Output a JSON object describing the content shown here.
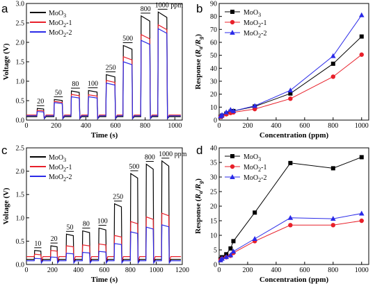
{
  "panels": [
    {
      "label": "a",
      "chart_data": {
        "type": "line",
        "xlabel": "Time (s)",
        "ylabel": "Voltage (V)",
        "xlim": [
          0,
          1050
        ],
        "ylim": [
          0,
          3.0
        ],
        "xticks": [
          0,
          200,
          400,
          600,
          800,
          1000
        ],
        "yticks": [
          0.0,
          0.5,
          1.0,
          1.5,
          2.0,
          2.5,
          3.0
        ],
        "baseline": [
          0.09,
          0.13,
          0.11
        ],
        "pulses": [
          {
            "label": "20",
            "start": 70,
            "end": 120,
            "levels": [
              0.3,
              0.25,
              0.22
            ]
          },
          {
            "label": "50",
            "start": 185,
            "end": 245,
            "levels": [
              0.53,
              0.48,
              0.45
            ]
          },
          {
            "label": "80",
            "start": 300,
            "end": 360,
            "levels": [
              0.75,
              0.66,
              0.6
            ]
          },
          {
            "label": "100",
            "start": 415,
            "end": 480,
            "levels": [
              0.76,
              0.65,
              0.6
            ]
          },
          {
            "label": "250",
            "start": 535,
            "end": 600,
            "levels": [
              1.17,
              1.02,
              0.95
            ]
          },
          {
            "label": "500",
            "start": 650,
            "end": 715,
            "levels": [
              1.92,
              1.63,
              1.5
            ]
          },
          {
            "label": "800",
            "start": 770,
            "end": 835,
            "levels": [
              2.68,
              2.2,
              2.05
            ]
          },
          {
            "label": "1000 ppm",
            "start": 885,
            "end": 950,
            "levels": [
              2.78,
              2.45,
              2.35
            ]
          }
        ],
        "series": [
          {
            "name": "MoO3",
            "color": "#000000"
          },
          {
            "name": "MoO2-1",
            "color": "#e8202a"
          },
          {
            "name": "MoO2-2",
            "color": "#2a2ae8"
          }
        ],
        "legend": "top-left"
      }
    },
    {
      "label": "b",
      "chart_data": {
        "type": "line",
        "xlabel": "Concentration (ppm)",
        "ylabel": "Response (Ra/Rg)",
        "xlim": [
          0,
          1050
        ],
        "ylim": [
          0,
          90
        ],
        "xticks": [
          0,
          200,
          400,
          600,
          800,
          1000
        ],
        "yticks": [
          0,
          10,
          20,
          30,
          40,
          50,
          60,
          70,
          80,
          90
        ],
        "x": [
          10,
          20,
          50,
          80,
          100,
          250,
          500,
          800,
          1000
        ],
        "series": [
          {
            "name": "MoO3",
            "marker": "square",
            "color": "#000000",
            "values": [
              2.5,
              3.5,
              5.0,
              6.5,
              7.0,
              10.5,
              20.5,
              43.5,
              64.5
            ]
          },
          {
            "name": "MoO2-1",
            "marker": "circle",
            "color": "#e8202a",
            "values": [
              2.5,
              3.0,
              4.5,
              5.5,
              6.0,
              8.5,
              16.5,
              33.5,
              50.5
            ]
          },
          {
            "name": "MoO2-2",
            "marker": "triangle",
            "color": "#2a2ae8",
            "values": [
              3.0,
              4.0,
              6.0,
              8.0,
              7.0,
              11.0,
              23.0,
              49.5,
              81.0
            ]
          }
        ],
        "legend": "top-left"
      }
    },
    {
      "label": "c",
      "chart_data": {
        "type": "line",
        "xlabel": "Time (s)",
        "ylabel": "Voltage (V)",
        "xlim": [
          0,
          1200
        ],
        "ylim": [
          0,
          2.5
        ],
        "xticks": [
          0,
          200,
          400,
          600,
          800,
          1000,
          1200
        ],
        "yticks": [
          0.0,
          0.5,
          1.0,
          1.5,
          2.0,
          2.5
        ],
        "baseline": [
          0.11,
          0.17,
          0.08
        ],
        "pulses": [
          {
            "label": "10",
            "start": 60,
            "end": 115,
            "levels": [
              0.3,
              0.22,
              0.13
            ]
          },
          {
            "label": "20",
            "start": 185,
            "end": 240,
            "levels": [
              0.4,
              0.3,
              0.16
            ]
          },
          {
            "label": "50",
            "start": 305,
            "end": 365,
            "levels": [
              0.65,
              0.4,
              0.24
            ]
          },
          {
            "label": "80",
            "start": 430,
            "end": 490,
            "levels": [
              0.72,
              0.42,
              0.26
            ]
          },
          {
            "label": "100",
            "start": 555,
            "end": 615,
            "levels": [
              0.78,
              0.44,
              0.28
            ]
          },
          {
            "label": "250",
            "start": 675,
            "end": 735,
            "levels": [
              1.3,
              0.62,
              0.45
            ]
          },
          {
            "label": "500",
            "start": 800,
            "end": 860,
            "levels": [
              1.95,
              0.92,
              0.7
            ]
          },
          {
            "label": "800",
            "start": 920,
            "end": 980,
            "levels": [
              2.15,
              1.02,
              0.8
            ]
          },
          {
            "label": "1000 ppm",
            "start": 1040,
            "end": 1100,
            "levels": [
              2.22,
              1.1,
              0.85
            ]
          }
        ],
        "series": [
          {
            "name": "MoO3",
            "color": "#000000"
          },
          {
            "name": "MoO2-1",
            "color": "#e8202a"
          },
          {
            "name": "MoO2-2",
            "color": "#2a2ae8"
          }
        ],
        "legend": "top-left"
      }
    },
    {
      "label": "d",
      "chart_data": {
        "type": "line",
        "xlabel": "Concentration (ppm)",
        "ylabel": "Response (Ra/Rg)",
        "xlim": [
          0,
          1050
        ],
        "ylim": [
          0,
          40
        ],
        "xticks": [
          0,
          200,
          400,
          600,
          800,
          1000
        ],
        "yticks": [
          0,
          5,
          10,
          15,
          20,
          25,
          30,
          35,
          40
        ],
        "x": [
          10,
          20,
          50,
          80,
          100,
          250,
          500,
          800,
          1000
        ],
        "series": [
          {
            "name": "MoO3",
            "marker": "square",
            "color": "#000000",
            "values": [
              1.8,
              2.5,
              3.5,
              5.5,
              8.0,
              17.8,
              34.8,
              33.0,
              36.8
            ]
          },
          {
            "name": "MoO2-1",
            "marker": "circle",
            "color": "#e8202a",
            "values": [
              1.5,
              2.0,
              2.5,
              3.0,
              4.0,
              8.0,
              13.5,
              13.5,
              15.0
            ]
          },
          {
            "name": "MoO2-2",
            "marker": "triangle",
            "color": "#2a2ae8",
            "values": [
              1.5,
              2.0,
              2.6,
              3.2,
              4.5,
              8.8,
              16.0,
              15.7,
              17.5
            ]
          }
        ],
        "legend": "top-left"
      }
    }
  ]
}
